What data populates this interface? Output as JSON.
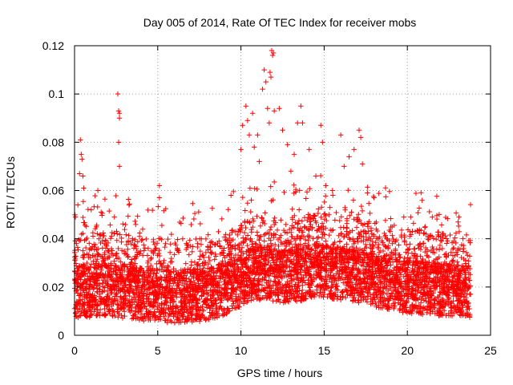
{
  "chart_data": {
    "type": "scatter",
    "title": "Day 005 of 2014, Rate Of TEC Index for receiver mobs",
    "xlabel": "GPS time / hours",
    "ylabel": "ROTI / TECUs",
    "xlim": [
      0,
      25
    ],
    "ylim": [
      0,
      0.12
    ],
    "grid": true,
    "marker": "+",
    "marker_color": "#ff0000",
    "x_ticks": [
      {
        "value": 0,
        "label": "0"
      },
      {
        "value": 5,
        "label": "5"
      },
      {
        "value": 10,
        "label": "10"
      },
      {
        "value": 15,
        "label": "15"
      },
      {
        "value": 20,
        "label": "20"
      },
      {
        "value": 25,
        "label": "25"
      }
    ],
    "y_ticks": [
      {
        "value": 0,
        "label": "0"
      },
      {
        "value": 0.02,
        "label": "0.02"
      },
      {
        "value": 0.04,
        "label": "0.04"
      },
      {
        "value": 0.06,
        "label": "0.06"
      },
      {
        "value": 0.08,
        "label": "0.08"
      },
      {
        "value": 0.1,
        "label": "0.1"
      },
      {
        "value": 0.12,
        "label": "0.12"
      }
    ],
    "data_extent_hours": [
      0.0,
      23.8
    ],
    "baseline_profile": {
      "hours": [
        0,
        2,
        4,
        6,
        8,
        9.5,
        10.5,
        11.5,
        12.5,
        13.5,
        14.5,
        15.5,
        16.5,
        17.5,
        18.5,
        20,
        22,
        23.8
      ],
      "roti": [
        0.018,
        0.019,
        0.017,
        0.016,
        0.017,
        0.02,
        0.025,
        0.026,
        0.024,
        0.025,
        0.027,
        0.026,
        0.025,
        0.024,
        0.022,
        0.02,
        0.019,
        0.018
      ]
    },
    "notable_points": [
      {
        "x": 0.2,
        "y": 0.054
      },
      {
        "x": 0.3,
        "y": 0.067
      },
      {
        "x": 0.35,
        "y": 0.081
      },
      {
        "x": 0.4,
        "y": 0.075
      },
      {
        "x": 0.45,
        "y": 0.073
      },
      {
        "x": 0.5,
        "y": 0.066
      },
      {
        "x": 0.55,
        "y": 0.061
      },
      {
        "x": 1.0,
        "y": 0.052
      },
      {
        "x": 1.4,
        "y": 0.06
      },
      {
        "x": 2.6,
        "y": 0.1
      },
      {
        "x": 2.65,
        "y": 0.093
      },
      {
        "x": 2.7,
        "y": 0.092
      },
      {
        "x": 2.7,
        "y": 0.09
      },
      {
        "x": 2.65,
        "y": 0.08
      },
      {
        "x": 2.7,
        "y": 0.07
      },
      {
        "x": 5.1,
        "y": 0.062
      },
      {
        "x": 5.1,
        "y": 0.057
      },
      {
        "x": 9.4,
        "y": 0.058
      },
      {
        "x": 10.0,
        "y": 0.077
      },
      {
        "x": 10.1,
        "y": 0.087
      },
      {
        "x": 10.3,
        "y": 0.095
      },
      {
        "x": 10.4,
        "y": 0.089
      },
      {
        "x": 10.5,
        "y": 0.083
      },
      {
        "x": 10.7,
        "y": 0.092
      },
      {
        "x": 10.8,
        "y": 0.078
      },
      {
        "x": 11.0,
        "y": 0.083
      },
      {
        "x": 11.1,
        "y": 0.072
      },
      {
        "x": 11.3,
        "y": 0.102
      },
      {
        "x": 11.4,
        "y": 0.11
      },
      {
        "x": 11.5,
        "y": 0.105
      },
      {
        "x": 11.6,
        "y": 0.094
      },
      {
        "x": 11.7,
        "y": 0.088
      },
      {
        "x": 11.75,
        "y": 0.109
      },
      {
        "x": 11.8,
        "y": 0.107
      },
      {
        "x": 11.85,
        "y": 0.118
      },
      {
        "x": 11.9,
        "y": 0.116
      },
      {
        "x": 11.95,
        "y": 0.117
      },
      {
        "x": 12.0,
        "y": 0.093
      },
      {
        "x": 12.3,
        "y": 0.094
      },
      {
        "x": 12.5,
        "y": 0.085
      },
      {
        "x": 12.8,
        "y": 0.079
      },
      {
        "x": 13.0,
        "y": 0.068
      },
      {
        "x": 13.2,
        "y": 0.075
      },
      {
        "x": 13.4,
        "y": 0.088
      },
      {
        "x": 13.6,
        "y": 0.095
      },
      {
        "x": 13.7,
        "y": 0.088
      },
      {
        "x": 14.1,
        "y": 0.077
      },
      {
        "x": 14.5,
        "y": 0.066
      },
      {
        "x": 14.8,
        "y": 0.087
      },
      {
        "x": 14.9,
        "y": 0.08
      },
      {
        "x": 15.1,
        "y": 0.062
      },
      {
        "x": 15.5,
        "y": 0.06
      },
      {
        "x": 16.0,
        "y": 0.083
      },
      {
        "x": 16.2,
        "y": 0.07
      },
      {
        "x": 16.5,
        "y": 0.074
      },
      {
        "x": 16.8,
        "y": 0.077
      },
      {
        "x": 17.1,
        "y": 0.085
      },
      {
        "x": 17.2,
        "y": 0.082
      },
      {
        "x": 17.3,
        "y": 0.071
      },
      {
        "x": 17.6,
        "y": 0.059
      },
      {
        "x": 18.0,
        "y": 0.057
      },
      {
        "x": 20.2,
        "y": 0.049
      },
      {
        "x": 21.5,
        "y": 0.049
      },
      {
        "x": 23.1,
        "y": 0.049
      }
    ]
  }
}
